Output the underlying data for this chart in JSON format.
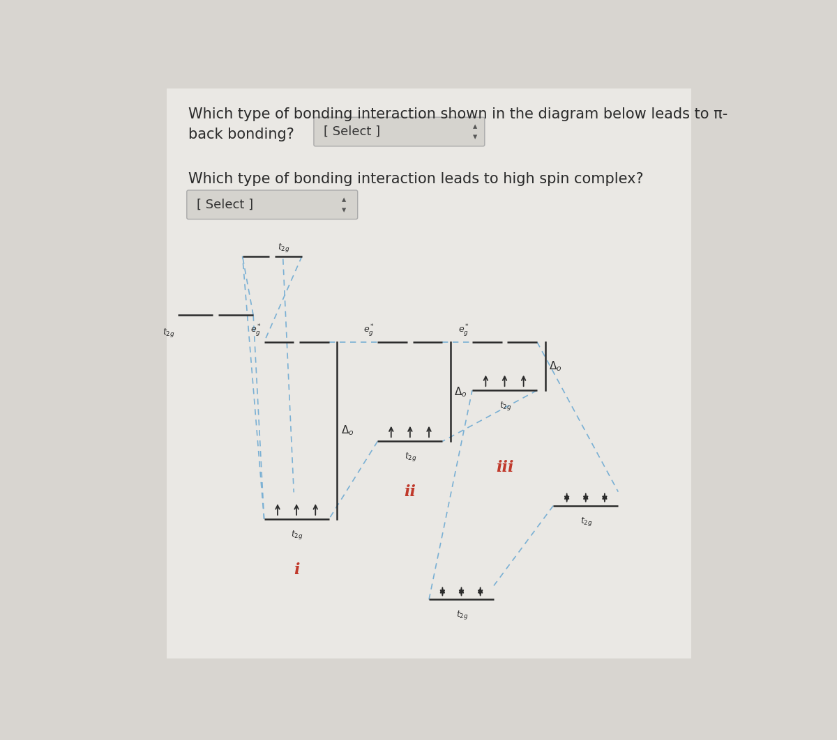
{
  "bg_color": "#d8d5d0",
  "panel_color": "#e8e6e2",
  "line_color": "#2a2a2a",
  "dashed_color": "#7ab0d4",
  "label_color_roman": "#c0392b",
  "question1": "Which type of bonding interaction shown in the diagram below leads to π-",
  "question1b": "back bonding?",
  "question2": "Which type of bonding interaction leads to high spin complex?",
  "select_text": "[ Select ]",
  "select_text2": "[ Select ]"
}
